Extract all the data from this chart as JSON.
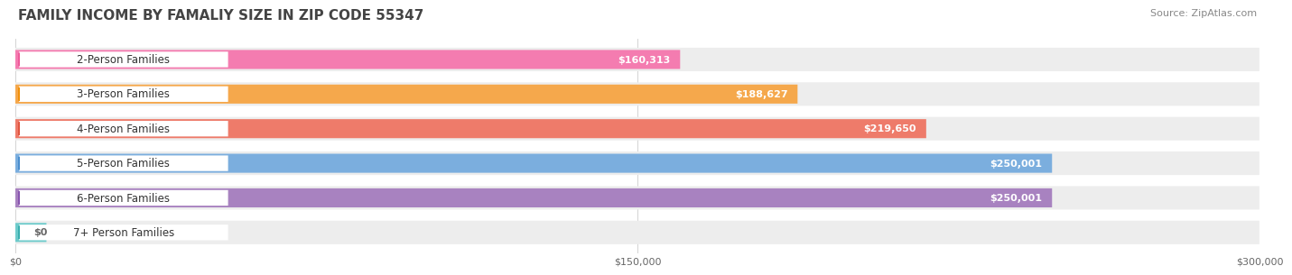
{
  "title": "FAMILY INCOME BY FAMALIY SIZE IN ZIP CODE 55347",
  "source": "Source: ZipAtlas.com",
  "categories": [
    "2-Person Families",
    "3-Person Families",
    "4-Person Families",
    "5-Person Families",
    "6-Person Families",
    "7+ Person Families"
  ],
  "values": [
    160313,
    188627,
    219650,
    250001,
    250001,
    0
  ],
  "value_labels": [
    "$160,313",
    "$188,627",
    "$219,650",
    "$250,001",
    "$250,001",
    "$0"
  ],
  "bar_colors": [
    "#F47CB0",
    "#F5A84C",
    "#EE7B6A",
    "#7BAEDE",
    "#A882C0",
    "#6ECBCB"
  ],
  "dot_colors": [
    "#EE5A9A",
    "#F0900A",
    "#E05540",
    "#4A8ECE",
    "#8855B0",
    "#3AAFAF"
  ],
  "bar_track_color": "#EDEDED",
  "x_max": 300000,
  "x_ticks": [
    0,
    150000,
    300000
  ],
  "x_tick_labels": [
    "$0",
    "$150,000",
    "$300,000"
  ],
  "title_fontsize": 11,
  "source_fontsize": 8,
  "bar_label_fontsize": 8.5,
  "value_label_fontsize": 8,
  "bg_color": "#FFFFFF",
  "grid_color": "#CCCCCC"
}
